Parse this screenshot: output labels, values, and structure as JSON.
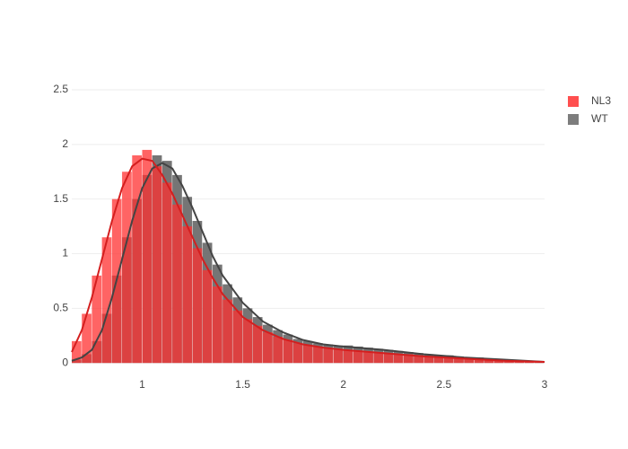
{
  "chart_data": {
    "type": "histogram",
    "bins": [
      0.65,
      0.7,
      0.75,
      0.8,
      0.85,
      0.9,
      0.95,
      1.0,
      1.05,
      1.1,
      1.15,
      1.2,
      1.25,
      1.3,
      1.35,
      1.4,
      1.45,
      1.5,
      1.55,
      1.6,
      1.65,
      1.7,
      1.75,
      1.8,
      1.85,
      1.9,
      1.95,
      2.0,
      2.05,
      2.1,
      2.15,
      2.2,
      2.25,
      2.3,
      2.35,
      2.4,
      2.45,
      2.5,
      2.55,
      2.6,
      2.65,
      2.7,
      2.75,
      2.8,
      2.85,
      2.9,
      2.95,
      3.0
    ],
    "series": [
      {
        "name": "WT",
        "color": "#666666",
        "values": [
          0.03,
          0.08,
          0.2,
          0.45,
          0.8,
          1.15,
          1.5,
          1.72,
          1.9,
          1.85,
          1.72,
          1.52,
          1.3,
          1.1,
          0.9,
          0.72,
          0.6,
          0.5,
          0.42,
          0.35,
          0.3,
          0.26,
          0.22,
          0.2,
          0.18,
          0.17,
          0.16,
          0.16,
          0.15,
          0.14,
          0.13,
          0.12,
          0.11,
          0.1,
          0.09,
          0.08,
          0.07,
          0.07,
          0.06,
          0.05,
          0.05,
          0.04,
          0.03,
          0.03,
          0.02,
          0.02,
          0.01
        ],
        "curve": {
          "color": "#444444",
          "x": [
            0.65,
            0.7,
            0.75,
            0.8,
            0.85,
            0.9,
            0.95,
            1.0,
            1.05,
            1.1,
            1.15,
            1.2,
            1.25,
            1.3,
            1.35,
            1.4,
            1.5,
            1.6,
            1.7,
            1.8,
            1.9,
            2.0,
            2.2,
            2.4,
            2.6,
            2.8,
            3.0
          ],
          "values": [
            0.02,
            0.05,
            0.12,
            0.3,
            0.6,
            0.95,
            1.3,
            1.6,
            1.78,
            1.83,
            1.78,
            1.62,
            1.42,
            1.2,
            0.98,
            0.8,
            0.55,
            0.38,
            0.28,
            0.21,
            0.17,
            0.15,
            0.12,
            0.08,
            0.05,
            0.03,
            0.01
          ]
        }
      },
      {
        "name": "NL3",
        "color": "#ff3030",
        "values": [
          0.2,
          0.45,
          0.8,
          1.15,
          1.5,
          1.75,
          1.9,
          1.95,
          1.8,
          1.65,
          1.45,
          1.25,
          1.05,
          0.85,
          0.7,
          0.58,
          0.48,
          0.4,
          0.34,
          0.28,
          0.24,
          0.21,
          0.18,
          0.16,
          0.15,
          0.13,
          0.12,
          0.12,
          0.11,
          0.1,
          0.1,
          0.09,
          0.08,
          0.08,
          0.07,
          0.06,
          0.06,
          0.05,
          0.05,
          0.04,
          0.04,
          0.03,
          0.03,
          0.02,
          0.02,
          0.02,
          0.01
        ],
        "curve": {
          "color": "#d41f1f",
          "x": [
            0.65,
            0.7,
            0.75,
            0.8,
            0.85,
            0.9,
            0.95,
            1.0,
            1.05,
            1.1,
            1.15,
            1.2,
            1.25,
            1.3,
            1.35,
            1.4,
            1.5,
            1.6,
            1.7,
            1.8,
            1.9,
            2.0,
            2.2,
            2.4,
            2.6,
            2.8,
            3.0
          ],
          "values": [
            0.1,
            0.3,
            0.6,
            0.95,
            1.3,
            1.6,
            1.8,
            1.87,
            1.85,
            1.72,
            1.55,
            1.35,
            1.15,
            0.95,
            0.78,
            0.63,
            0.42,
            0.3,
            0.22,
            0.17,
            0.14,
            0.12,
            0.09,
            0.06,
            0.04,
            0.02,
            0.01
          ]
        }
      }
    ],
    "legend_order": [
      1,
      0
    ],
    "xlim": [
      0.65,
      3.0
    ],
    "xticks": [
      1,
      1.5,
      2,
      2.5,
      3
    ],
    "ylim": [
      -0.13,
      2.5
    ],
    "yticks": [
      0,
      0.5,
      1,
      1.5,
      2,
      2.5
    ],
    "grid": true
  }
}
